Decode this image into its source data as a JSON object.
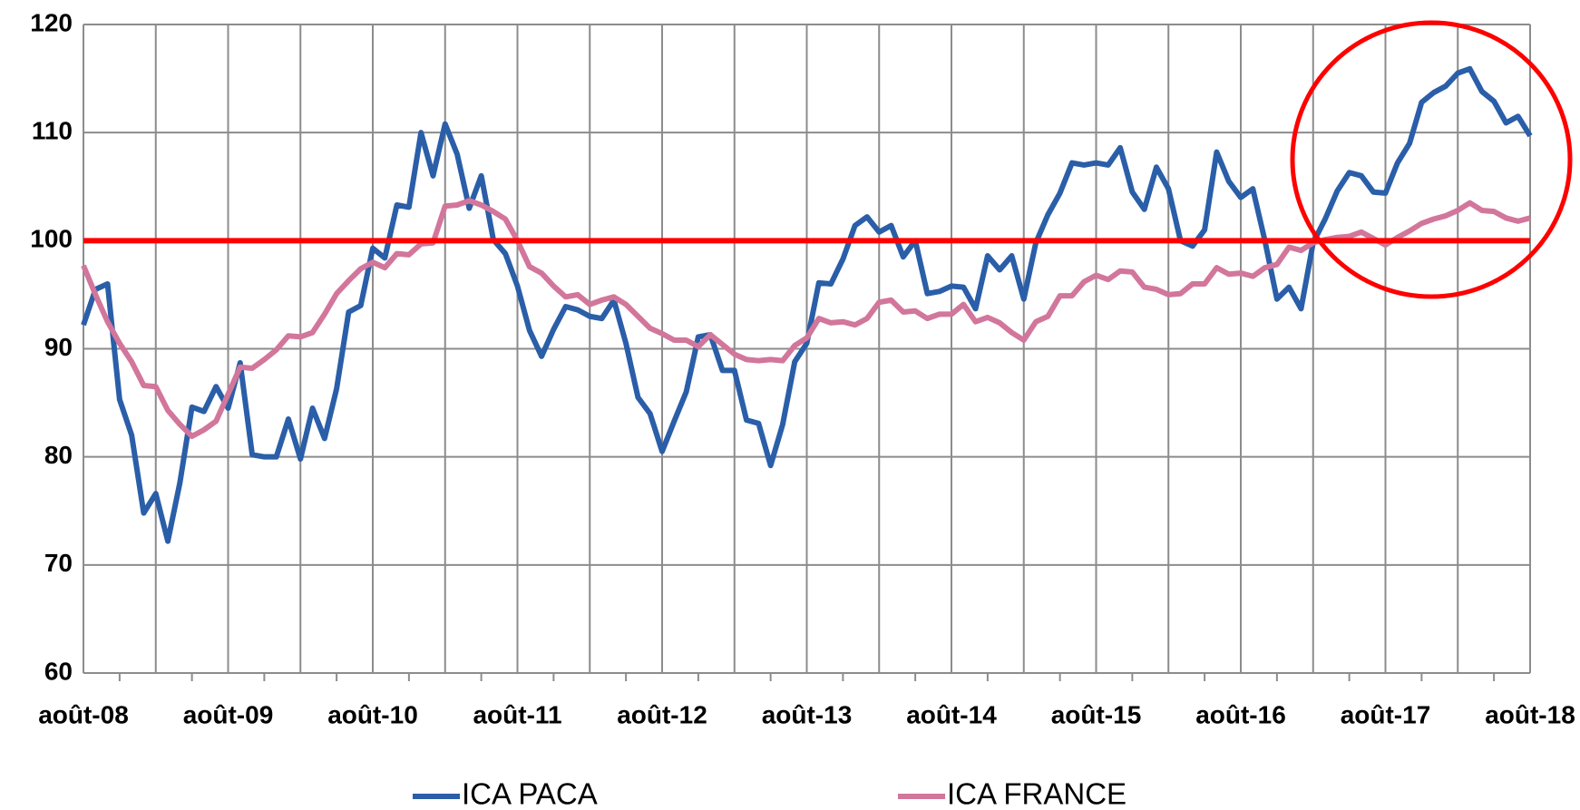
{
  "chart_data": {
    "type": "line",
    "categories": [
      "août-08",
      null,
      null,
      null,
      null,
      null,
      null,
      null,
      null,
      null,
      null,
      null,
      "août-09",
      null,
      null,
      null,
      null,
      null,
      null,
      null,
      null,
      null,
      null,
      null,
      "août-10",
      null,
      null,
      null,
      null,
      null,
      null,
      null,
      null,
      null,
      null,
      null,
      "août-11",
      null,
      null,
      null,
      null,
      null,
      null,
      null,
      null,
      null,
      null,
      null,
      "août-12",
      null,
      null,
      null,
      null,
      null,
      null,
      null,
      null,
      null,
      null,
      null,
      "août-13",
      null,
      null,
      null,
      null,
      null,
      null,
      null,
      null,
      null,
      null,
      null,
      "août-14",
      null,
      null,
      null,
      null,
      null,
      null,
      null,
      null,
      null,
      null,
      null,
      "août-15",
      null,
      null,
      null,
      null,
      null,
      null,
      null,
      null,
      null,
      null,
      null,
      "août-16",
      null,
      null,
      null,
      null,
      null,
      null,
      null,
      null,
      null,
      null,
      null,
      "août-17",
      null,
      null,
      null,
      null,
      null,
      null,
      null,
      null,
      null,
      null,
      null,
      "août-18"
    ],
    "series": [
      {
        "name": "ICA PACA",
        "color": "#2a5ea8",
        "values": [
          92.2,
          95.5,
          96,
          85.3,
          82,
          74.8,
          76.6,
          72.2,
          77.6,
          84.6,
          84.2,
          86.5,
          84.5,
          88.7,
          80.2,
          80,
          80,
          83.5,
          79.8,
          84.5,
          81.7,
          86.3,
          93.4,
          94,
          99.3,
          98.4,
          103.3,
          103.1,
          110,
          106,
          110.8,
          108,
          103,
          106,
          100.1,
          98.8,
          95.8,
          91.7,
          89.3,
          91.8,
          93.9,
          93.6,
          93,
          92.8,
          94.5,
          90.5,
          85.5,
          84,
          80.5,
          83.3,
          86,
          91.1,
          91.3,
          88,
          88,
          83.4,
          83.1,
          79.2,
          83,
          88.8,
          90.5,
          96.1,
          96,
          98.3,
          101.4,
          102.2,
          100.8,
          101.4,
          98.5,
          100,
          95.1,
          95.3,
          95.8,
          95.7,
          93.7,
          98.6,
          97.3,
          98.6,
          94.6,
          99.8,
          102.4,
          104.4,
          107.2,
          107,
          107.2,
          107,
          108.6,
          104.5,
          102.9,
          106.8,
          104.8,
          100,
          99.5,
          101,
          108.2,
          105.5,
          104,
          104.8,
          100,
          94.6,
          95.7,
          93.7,
          99.8,
          102,
          104.6,
          106.3,
          106,
          104.5,
          104.4,
          107.2,
          109,
          112.8,
          113.7,
          114.3,
          115.5,
          115.9,
          113.8,
          112.9,
          110.9,
          111.5,
          109.7
        ]
      },
      {
        "name": "ICA FRANCE",
        "color": "#d2769b",
        "values": [
          97.7,
          95,
          92.5,
          90.5,
          88.8,
          86.6,
          86.5,
          84.3,
          83,
          81.9,
          82.5,
          83.3,
          85.8,
          88.3,
          88.2,
          89,
          89.9,
          91.2,
          91.1,
          91.5,
          93.2,
          95.1,
          96.3,
          97.4,
          98,
          97.5,
          98.8,
          98.7,
          99.7,
          99.8,
          103.2,
          103.3,
          103.7,
          103.3,
          102.7,
          102,
          100,
          97.6,
          97,
          95.8,
          94.8,
          95,
          94.1,
          94.5,
          94.8,
          94.1,
          93,
          91.9,
          91.4,
          90.8,
          90.8,
          90.2,
          91.3,
          90.4,
          89.5,
          89,
          88.9,
          89,
          88.9,
          90.3,
          91,
          92.8,
          92.4,
          92.5,
          92.2,
          92.8,
          94.3,
          94.5,
          93.4,
          93.5,
          92.8,
          93.2,
          93.2,
          94.1,
          92.5,
          92.9,
          92.4,
          91.5,
          90.8,
          92.5,
          93,
          94.9,
          94.9,
          96.2,
          96.8,
          96.4,
          97.2,
          97.1,
          95.7,
          95.5,
          95,
          95.1,
          96,
          96,
          97.5,
          96.9,
          97,
          96.7,
          97.5,
          97.8,
          99.4,
          99.1,
          99.8,
          100.1,
          100.3,
          100.4,
          100.8,
          100.2,
          99.6,
          100.3,
          100.9,
          101.6,
          102,
          102.3,
          102.8,
          103.5,
          102.8,
          102.7,
          102.1,
          101.8,
          102.1
        ]
      }
    ],
    "ylim": [
      60,
      120
    ],
    "yticks": [
      60,
      70,
      80,
      90,
      100,
      110,
      120
    ],
    "grid": true,
    "reference_line": {
      "value": 100,
      "color": "#ff0000"
    },
    "legend": "bottom"
  }
}
